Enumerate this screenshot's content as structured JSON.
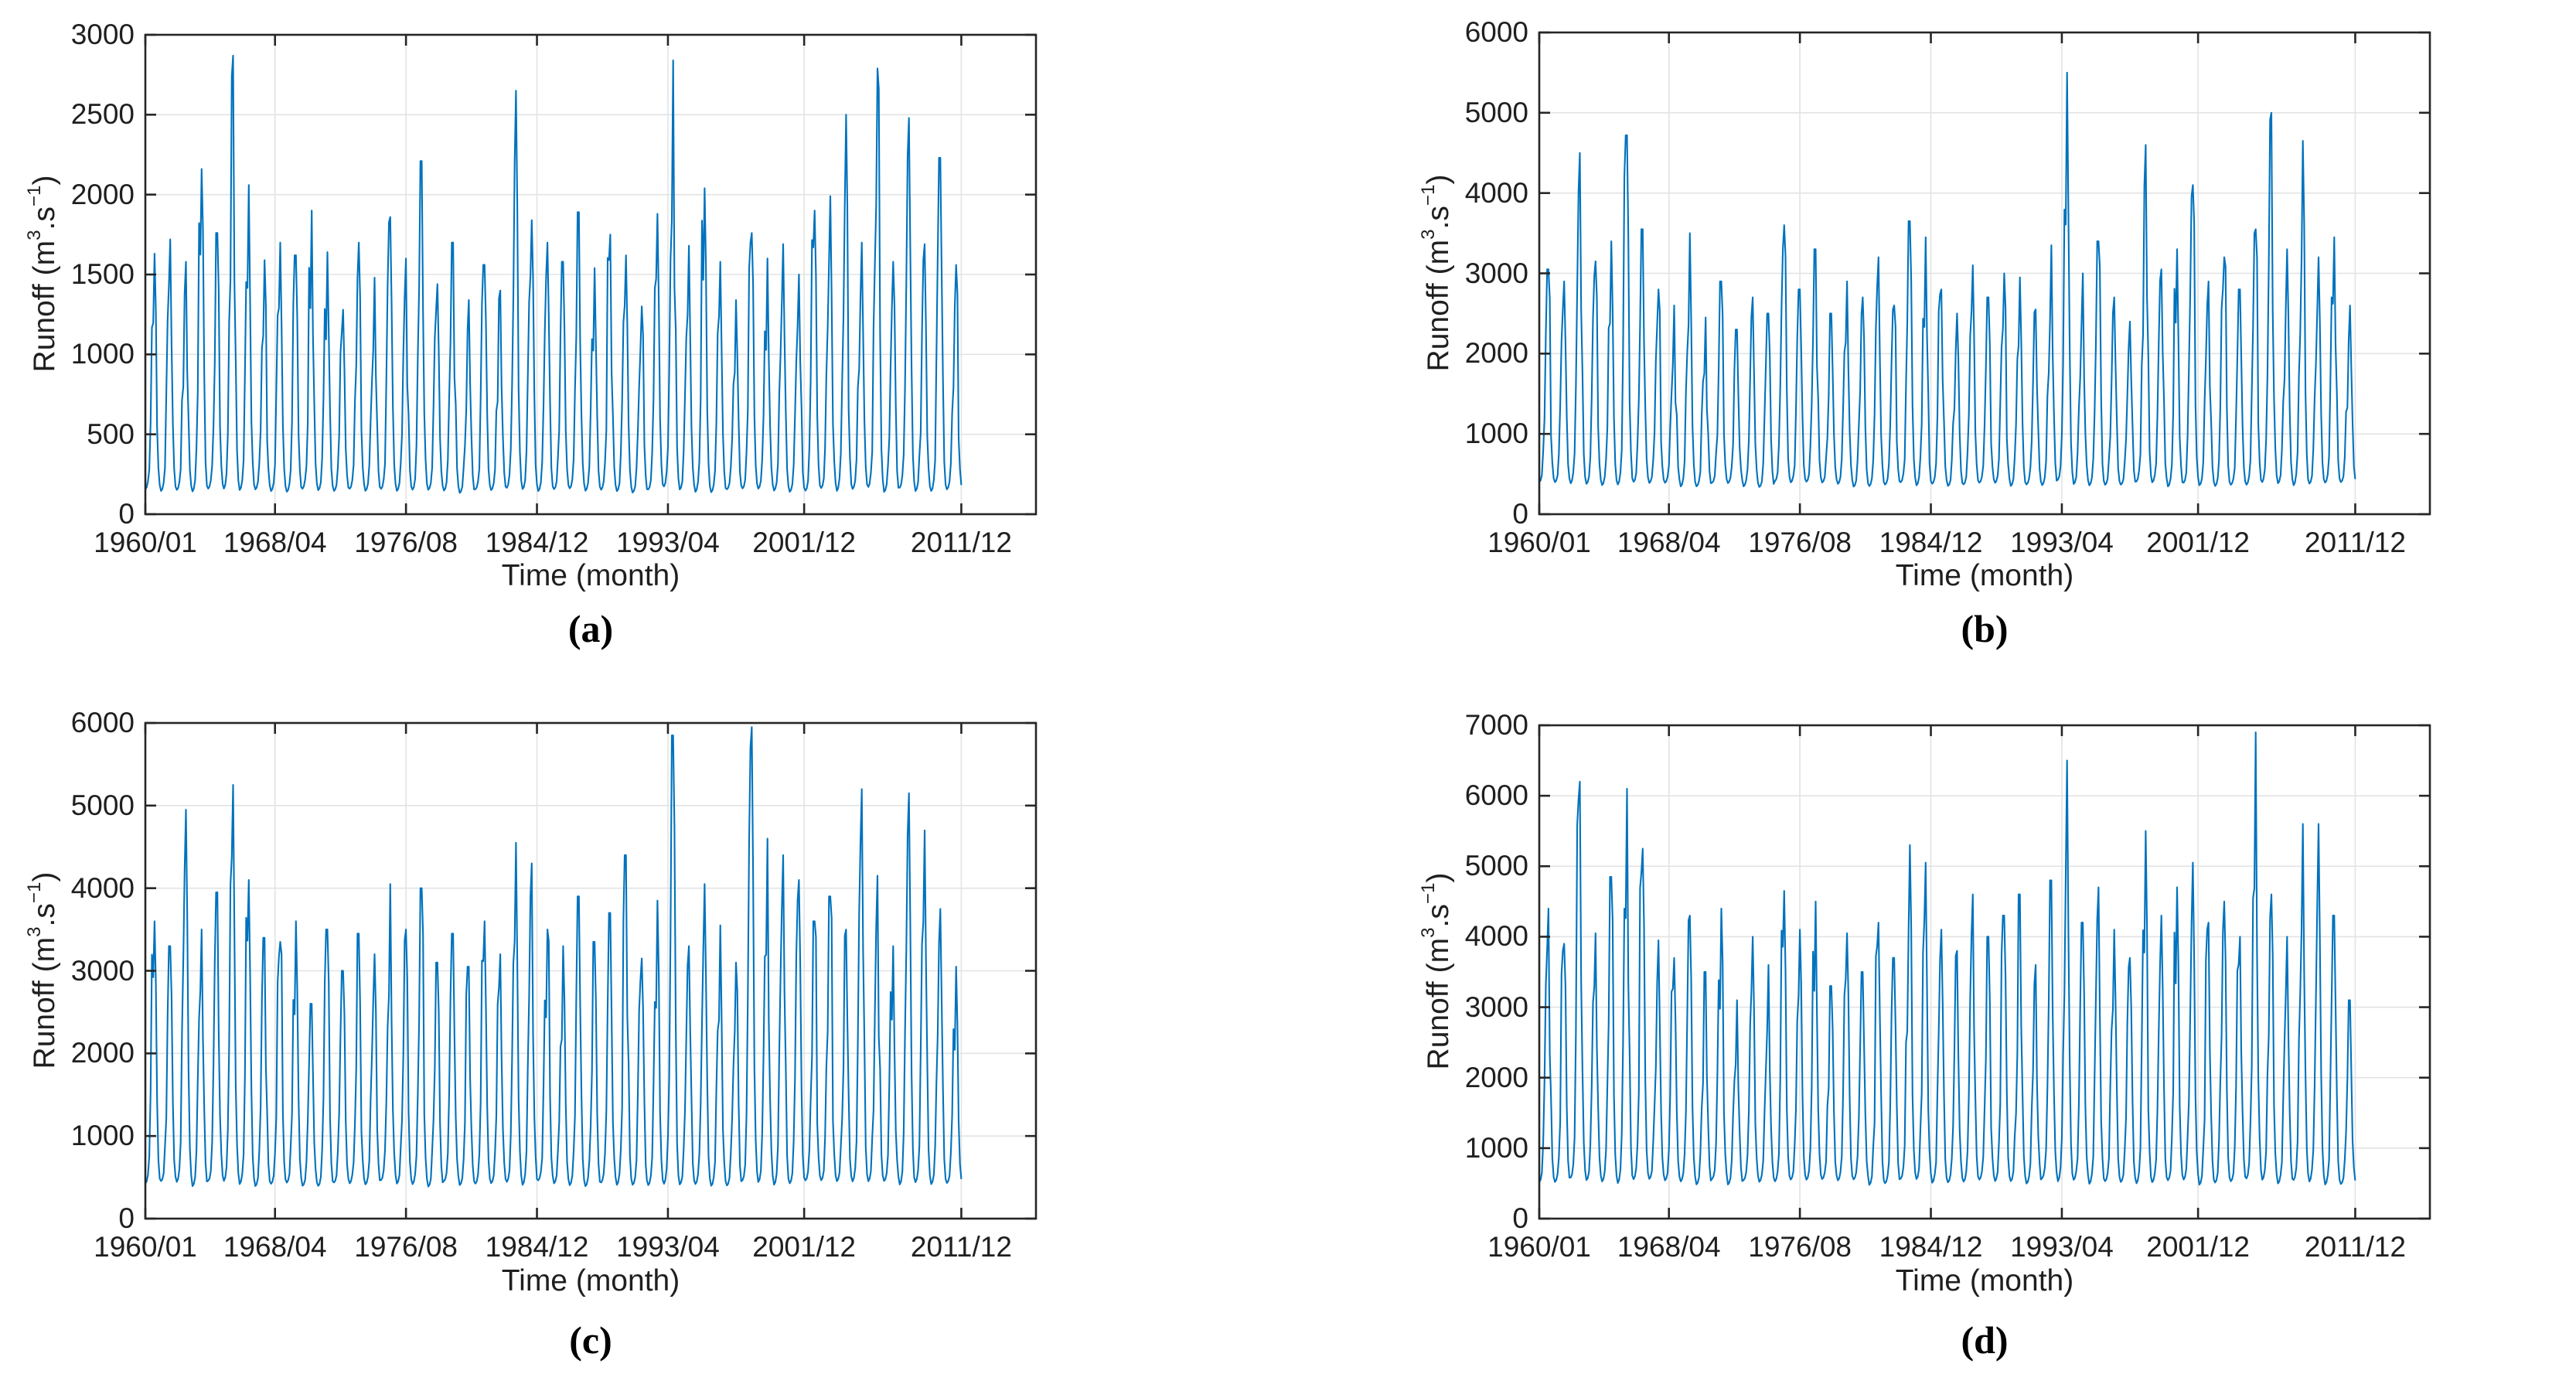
{
  "figure": {
    "background": "#ffffff",
    "line_color": "#0072BD",
    "grid_color": "#e3e3e3",
    "axis_color": "#262626",
    "text_color": "#1f1f1f"
  },
  "shared": {
    "xlabel": "Time (month)",
    "ylabel_parts": {
      "base": "Runoff (m",
      "sup_exp": "3",
      "mid": ".s",
      "sup_neg": "−1",
      "close": ")"
    },
    "ylabel_plain": "Runoff (m3.s-1)",
    "x_tick_labels": [
      "1960/01",
      "1968/04",
      "1976/08",
      "1984/12",
      "1993/04",
      "2001/12",
      "2011/12"
    ],
    "x_tick_months": [
      0,
      99,
      199,
      299,
      399,
      503,
      623
    ],
    "x_range_months": [
      0,
      680
    ],
    "start_year": 1960,
    "end_year": 2011,
    "n_months": 624
  },
  "chart_data": [
    {
      "id": "a",
      "caption": "(a)",
      "type": "line",
      "xlabel": "Time (month)",
      "ylabel_plain": "Runoff (m3.s-1)",
      "x_tick_labels": [
        "1960/01",
        "1968/04",
        "1976/08",
        "1984/12",
        "1993/04",
        "2001/12",
        "2011/12"
      ],
      "x_tick_months": [
        0,
        99,
        199,
        299,
        399,
        503,
        623
      ],
      "ylim": [
        0,
        3000
      ],
      "y_ticks": [
        0,
        500,
        1000,
        1500,
        2000,
        2500,
        3000
      ],
      "grid": true,
      "legend": "none",
      "baseline_low": 130,
      "annual_peak_years_start": 1960,
      "annual_peaks": [
        1630,
        1720,
        1580,
        2160,
        1760,
        2870,
        2060,
        1590,
        1700,
        1620,
        1900,
        1640,
        1280,
        1700,
        1480,
        1860,
        1600,
        2210,
        1440,
        1700,
        1340,
        1560,
        1400,
        2650,
        1840,
        1700,
        1580,
        1890,
        1540,
        1750,
        1620,
        1300,
        1880,
        2840,
        1680,
        2040,
        1580,
        1340,
        1760,
        1600,
        1690,
        1500,
        1900,
        1990,
        2500,
        1700,
        2790,
        1580,
        2480,
        1690,
        2230,
        1560
      ]
    },
    {
      "id": "b",
      "caption": "(b)",
      "type": "line",
      "xlabel": "Time (month)",
      "ylabel_plain": "Runoff (m3.s-1)",
      "x_tick_labels": [
        "1960/01",
        "1968/04",
        "1976/08",
        "1984/12",
        "1993/04",
        "2001/12",
        "2011/12"
      ],
      "x_tick_months": [
        0,
        99,
        199,
        299,
        399,
        503,
        623
      ],
      "ylim": [
        0,
        6000
      ],
      "y_ticks": [
        0,
        1000,
        2000,
        3000,
        4000,
        5000,
        6000
      ],
      "grid": true,
      "legend": "none",
      "baseline_low": 340,
      "annual_peak_years_start": 1960,
      "annual_peaks": [
        3050,
        2900,
        4500,
        3150,
        3400,
        4720,
        3550,
        2800,
        2600,
        3500,
        2450,
        2900,
        2300,
        2700,
        2500,
        3600,
        2800,
        3300,
        2500,
        2900,
        2700,
        3200,
        2600,
        3650,
        3450,
        2800,
        2500,
        3100,
        2700,
        3000,
        2950,
        2550,
        3350,
        5500,
        3000,
        3400,
        2700,
        2400,
        4600,
        3050,
        3300,
        4100,
        2900,
        3200,
        2800,
        3550,
        5000,
        3300,
        4650,
        3200,
        3450,
        2600
      ]
    },
    {
      "id": "c",
      "caption": "(c)",
      "type": "line",
      "xlabel": "Time (month)",
      "ylabel_plain": "Runoff (m3.s-1)",
      "x_tick_labels": [
        "1960/01",
        "1968/04",
        "1976/08",
        "1984/12",
        "1993/04",
        "2001/12",
        "2011/12"
      ],
      "x_tick_months": [
        0,
        99,
        199,
        299,
        399,
        503,
        623
      ],
      "ylim": [
        0,
        6000
      ],
      "y_ticks": [
        0,
        1000,
        2000,
        3000,
        4000,
        5000,
        6000
      ],
      "grid": true,
      "legend": "none",
      "baseline_low": 390,
      "annual_peak_years_start": 1960,
      "annual_peaks": [
        3600,
        3300,
        4950,
        3500,
        3950,
        5250,
        4100,
        3400,
        3350,
        3600,
        2600,
        3500,
        3000,
        3450,
        3200,
        4050,
        3500,
        4000,
        3100,
        3450,
        3050,
        3600,
        3200,
        4550,
        4300,
        3500,
        3300,
        3900,
        3350,
        3700,
        4400,
        3150,
        3850,
        5850,
        3300,
        4050,
        3550,
        3100,
        5950,
        4600,
        4400,
        4100,
        3600,
        3900,
        3500,
        5200,
        4150,
        3300,
        5150,
        4700,
        3750,
        3050
      ]
    },
    {
      "id": "d",
      "caption": "(d)",
      "type": "line",
      "xlabel": "Time (month)",
      "ylabel_plain": "Runoff (m3.s-1)",
      "x_tick_labels": [
        "1960/01",
        "1968/04",
        "1976/08",
        "1984/12",
        "1993/04",
        "2001/12",
        "2011/12"
      ],
      "x_tick_months": [
        0,
        99,
        199,
        299,
        399,
        503,
        623
      ],
      "ylim": [
        0,
        7000
      ],
      "y_ticks": [
        0,
        1000,
        2000,
        3000,
        4000,
        5000,
        6000,
        7000
      ],
      "grid": true,
      "legend": "none",
      "baseline_low": 480,
      "annual_peak_years_start": 1960,
      "annual_peaks": [
        4400,
        3900,
        6200,
        4050,
        4850,
        6100,
        5250,
        3950,
        3700,
        4300,
        3500,
        4400,
        3100,
        4000,
        3600,
        4650,
        4100,
        4500,
        3300,
        4050,
        3500,
        4200,
        3700,
        5300,
        5050,
        4100,
        3800,
        4600,
        4000,
        4300,
        4600,
        3600,
        4800,
        6500,
        4200,
        4700,
        4100,
        3700,
        5500,
        4300,
        4700,
        5050,
        4200,
        4500,
        4000,
        6900,
        4600,
        4000,
        5600,
        5600,
        4300,
        3100
      ]
    }
  ]
}
